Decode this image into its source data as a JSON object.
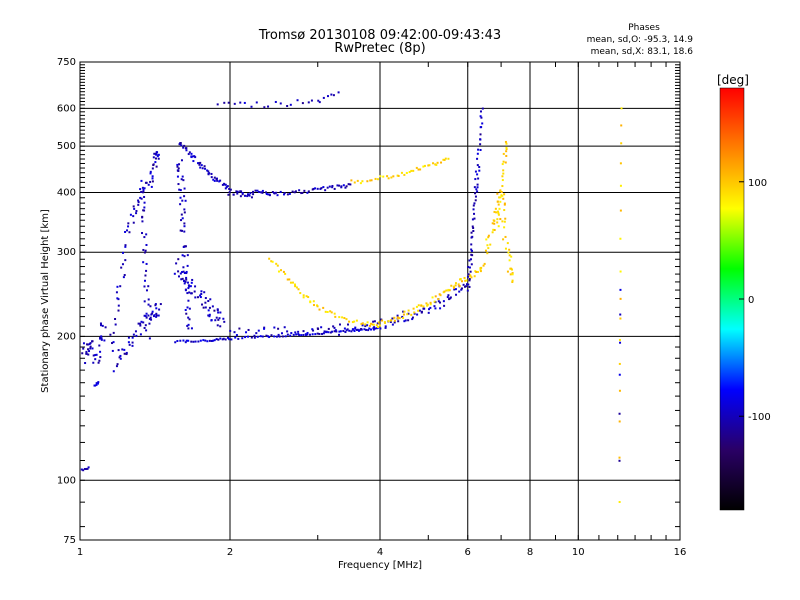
{
  "chart_data": {
    "type": "scatter",
    "title": "Tromsø 20130108 09:42:00-09:43:43",
    "subtitle": "RwPretec (8p)",
    "xlabel": "Frequency [MHz]",
    "ylabel": "Stationary phase Virtual Height [km]",
    "x_scale": "log",
    "y_scale": "log",
    "xlim": [
      1,
      16
    ],
    "ylim": [
      75,
      750
    ],
    "x_ticks": [
      1,
      2,
      4,
      6,
      8,
      10,
      16
    ],
    "y_ticks": [
      75,
      100,
      200,
      300,
      400,
      500,
      600,
      750
    ],
    "grid_x": [
      2,
      4,
      6,
      8,
      10
    ],
    "grid_y": [
      100,
      200,
      300,
      400,
      500,
      600
    ],
    "grid": true,
    "phases_header": "Phases",
    "phases_lines": [
      "mean, sd,O: -95.3, 14.9",
      "mean, sd,X: 83.1, 18.6"
    ],
    "colorbar": {
      "label": "[deg]",
      "range": [
        -180,
        180
      ],
      "ticks": [
        100,
        0,
        -100
      ],
      "colors": [
        "#ff0000",
        "#ff8000",
        "#ffff00",
        "#00ff00",
        "#00ffff",
        "#0000ff",
        "#2a0066",
        "#000000"
      ]
    },
    "series": [
      {
        "traces": [
          {
            "x": [
              1.02,
              1.03,
              1.05,
              1.08,
              1.1,
              1.12
            ],
            "y": [
              190,
              180,
              200,
              175,
              195,
              210
            ],
            "jitter": 0.06,
            "n": 40,
            "phase": -100
          },
          {
            "x": [
              1.01,
              1.04
            ],
            "y": [
              105,
              106
            ],
            "jitter": 0.01,
            "n": 6,
            "phase": -95
          },
          {
            "x": [
              1.07,
              1.09
            ],
            "y": [
              158,
              160
            ],
            "jitter": 0.01,
            "n": 6,
            "phase": -95
          },
          {
            "x": [
              1.15,
              1.2,
              1.25,
              1.3,
              1.38,
              1.42,
              1.44
            ],
            "y": [
              185,
              250,
              330,
              380,
              420,
              470,
              480
            ],
            "jitter": 0.05,
            "n": 70,
            "phase": -100
          },
          {
            "x": [
              1.18,
              1.25,
              1.33,
              1.4,
              1.45
            ],
            "y": [
              175,
              190,
              210,
              225,
              230
            ],
            "jitter": 0.07,
            "n": 50,
            "phase": -100
          },
          {
            "x": [
              1.33,
              1.34,
              1.35,
              1.36,
              1.37
            ],
            "y": [
              420,
              360,
              300,
              250,
              200
            ],
            "jitter": 0.04,
            "n": 35,
            "phase": -100
          },
          {
            "x": [
              1.58,
              1.6,
              1.62,
              1.64,
              1.66
            ],
            "y": [
              470,
              400,
              320,
              250,
              200
            ],
            "jitter": 0.06,
            "n": 60,
            "phase": -100
          },
          {
            "x": [
              1.58,
              1.7,
              1.85,
              2.0,
              2.2
            ],
            "y": [
              510,
              470,
              430,
              400,
              395
            ],
            "jitter": 0.03,
            "n": 70,
            "phase": -100
          },
          {
            "x": [
              1.55,
              1.65,
              1.75,
              1.85,
              1.95
            ],
            "y": [
              280,
              260,
              240,
              225,
              215
            ],
            "jitter": 0.08,
            "n": 60,
            "phase": -100
          },
          {
            "x": [
              1.55,
              1.8,
              2.0,
              2.4,
              2.8,
              3.2,
              3.6,
              4.0
            ],
            "y": [
              195,
              196,
              198,
              200,
              202,
              204,
              206,
              208
            ],
            "jitter": 0.01,
            "n": 90,
            "phase": -95
          },
          {
            "x": [
              2.0,
              2.5,
              3.0,
              3.5,
              4.0,
              4.5,
              5.0,
              5.5,
              6.0
            ],
            "y": [
              205,
              205,
              206,
              207,
              212,
              220,
              228,
              240,
              258
            ],
            "jitter": 0.05,
            "n": 110,
            "phase": -100
          },
          {
            "x": [
              2.2,
              2.5,
              3.0,
              3.5
            ],
            "y": [
              400,
              398,
              405,
              415
            ],
            "jitter": 0.02,
            "n": 55,
            "phase": -100
          },
          {
            "x": [
              3.5,
              4.0,
              4.5,
              5.0,
              5.5
            ],
            "y": [
              420,
              428,
              440,
              455,
              470
            ],
            "jitter": 0.02,
            "n": 40,
            "phase": 95
          },
          {
            "x": [
              1.9,
              2.2,
              2.6,
              3.0,
              3.3
            ],
            "y": [
              620,
              610,
              615,
              625,
              640
            ],
            "jitter": 0.03,
            "n": 25,
            "phase": -100
          },
          {
            "x": [
              2.4,
              2.6,
              2.8,
              3.0,
              3.3,
              3.7,
              4.0
            ],
            "y": [
              290,
              265,
              245,
              230,
              220,
              213,
              210
            ],
            "jitter": 0.02,
            "n": 55,
            "phase": 95
          },
          {
            "x": [
              4.0,
              4.5,
              5.0,
              5.5,
              6.0,
              6.5
            ],
            "y": [
              212,
              222,
              235,
              250,
              265,
              280
            ],
            "jitter": 0.03,
            "n": 70,
            "phase": 95
          },
          {
            "x": [
              6.0,
              6.1,
              6.2,
              6.3,
              6.4
            ],
            "y": [
              250,
              300,
              380,
              460,
              600
            ],
            "jitter": 0.03,
            "n": 60,
            "phase": -100
          },
          {
            "x": [
              6.5,
              6.8,
              7.0,
              7.2,
              7.4
            ],
            "y": [
              300,
              350,
              400,
              300,
              260
            ],
            "jitter": 0.05,
            "n": 55,
            "phase": 95
          },
          {
            "x": [
              6.9,
              7.0,
              7.1,
              7.2
            ],
            "y": [
              340,
              400,
              460,
              510
            ],
            "jitter": 0.03,
            "n": 25,
            "phase": 95
          },
          {
            "x": [
              12.1,
              12.15,
              12.2
            ],
            "y": [
              90,
              250,
              600
            ],
            "jitter": 0.004,
            "n": 16,
            "phase": 95
          },
          {
            "x": [
              12.1,
              12.15
            ],
            "y": [
              110,
              250
            ],
            "jitter": 0.004,
            "n": 6,
            "phase": -100
          }
        ]
      }
    ]
  }
}
